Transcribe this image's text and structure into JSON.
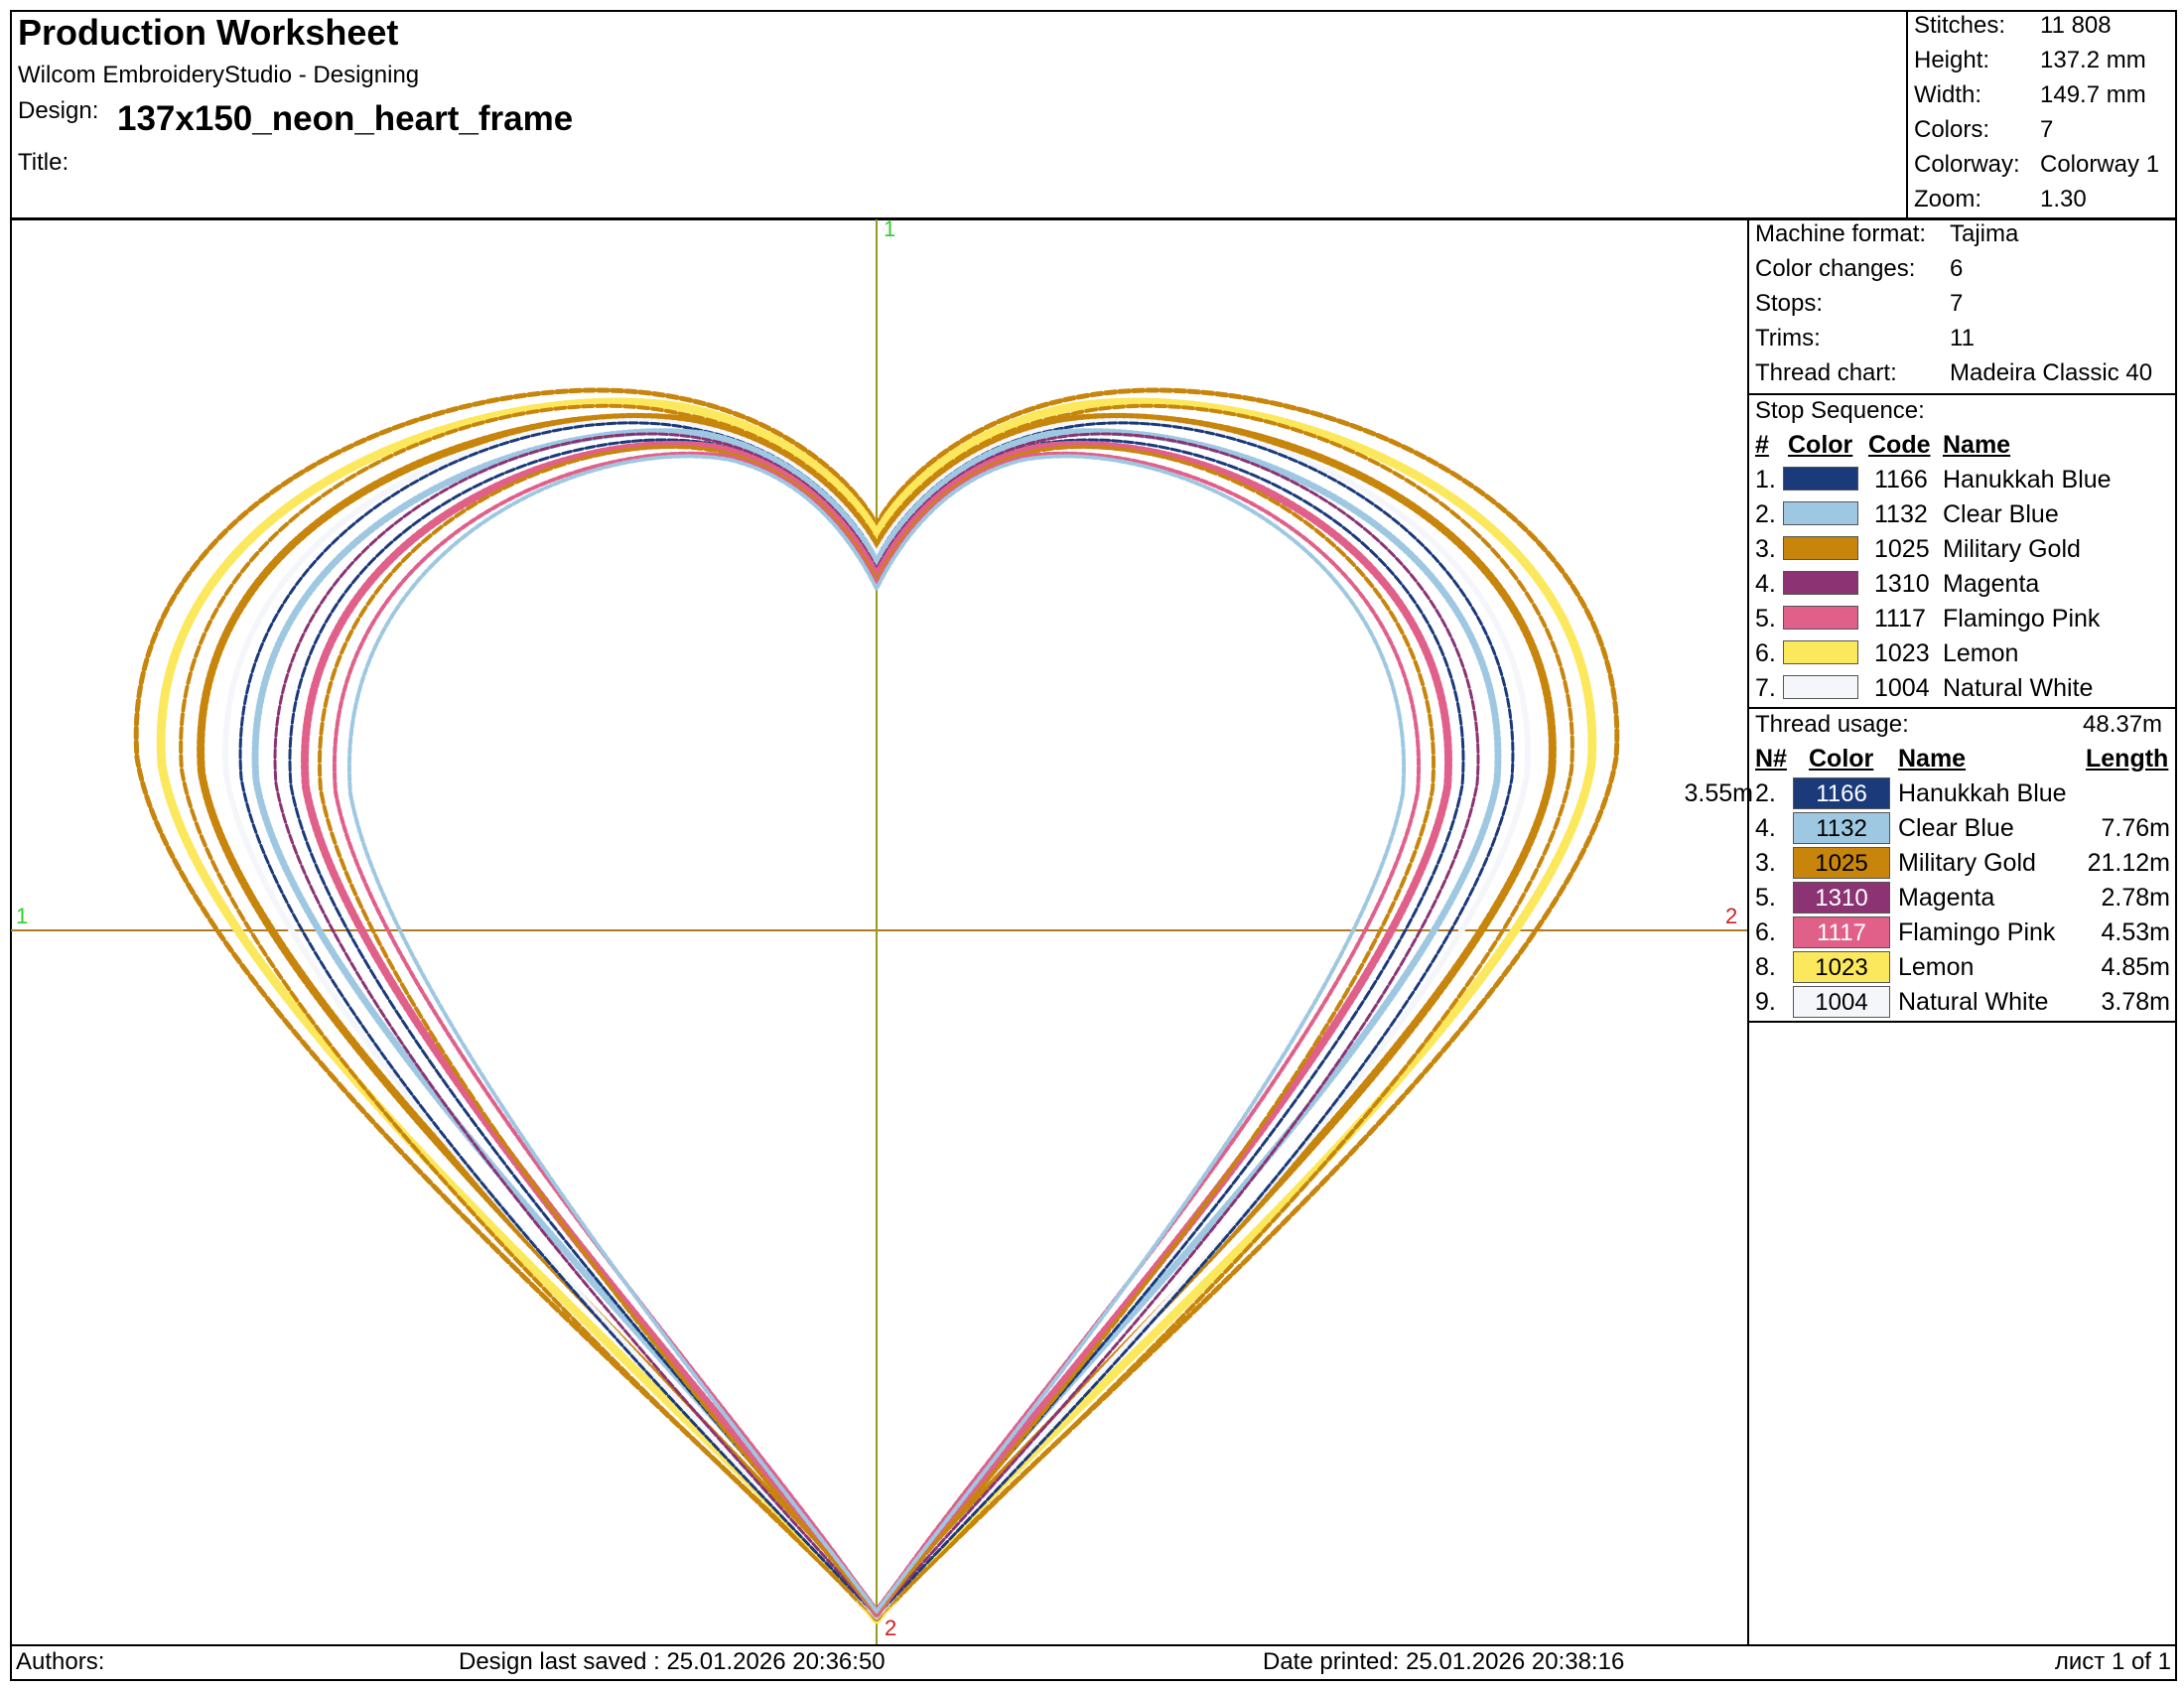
{
  "header": {
    "title": "Production Worksheet",
    "software": "Wilcom EmbroideryStudio - Designing",
    "design_label": "Design:",
    "design_name": "137x150_neon_heart_frame",
    "title_label": "Title:",
    "title_value": ""
  },
  "stats": [
    {
      "label": "Stitches:",
      "value": "11 808"
    },
    {
      "label": "Height:",
      "value": "137.2 mm"
    },
    {
      "label": "Width:",
      "value": "149.7 mm"
    },
    {
      "label": "Colors:",
      "value": "7"
    },
    {
      "label": "Colorway:",
      "value": "Colorway 1"
    },
    {
      "label": "Zoom:",
      "value": "1.30"
    }
  ],
  "machine": [
    {
      "label": "Machine format:",
      "value": "Tajima"
    },
    {
      "label": "Color changes:",
      "value": "6"
    },
    {
      "label": "Stops:",
      "value": "7"
    },
    {
      "label": "Trims:",
      "value": "11"
    },
    {
      "label": "Thread chart:",
      "value": "Madeira Classic 40"
    }
  ],
  "stop_sequence": {
    "title": "Stop Sequence:",
    "headers": {
      "num": "#",
      "color": "Color",
      "code": "Code",
      "name": "Name"
    },
    "rows": [
      {
        "num": "1.",
        "color": "#1b3a7a",
        "code": "1166",
        "name": "Hanukkah Blue"
      },
      {
        "num": "2.",
        "color": "#9ec8e2",
        "code": "1132",
        "name": "Clear Blue"
      },
      {
        "num": "3.",
        "color": "#c8850c",
        "code": "1025",
        "name": "Military Gold"
      },
      {
        "num": "4.",
        "color": "#8b3373",
        "code": "1310",
        "name": "Magenta"
      },
      {
        "num": "5.",
        "color": "#e0608a",
        "code": "1117",
        "name": "Flamingo Pink"
      },
      {
        "num": "6.",
        "color": "#fce85c",
        "code": "1023",
        "name": "Lemon"
      },
      {
        "num": "7.",
        "color": "#f4f6fa",
        "code": "1004",
        "name": "Natural White"
      }
    ]
  },
  "thread_usage": {
    "title": "Thread usage:",
    "total": "48.37m",
    "headers": {
      "num": "N#",
      "color": "Color",
      "name": "Name",
      "length": "Length"
    },
    "rows": [
      {
        "num": "2.",
        "color": "#1b3a7a",
        "text_color": "#ffffff",
        "code": "1166",
        "name": "Hanukkah Blue",
        "length": "3.55m"
      },
      {
        "num": "4.",
        "color": "#9ec8e2",
        "text_color": "#000000",
        "code": "1132",
        "name": "Clear Blue",
        "length": "7.76m"
      },
      {
        "num": "3.",
        "color": "#c8850c",
        "text_color": "#000000",
        "code": "1025",
        "name": "Military Gold",
        "length": "21.12m"
      },
      {
        "num": "5.",
        "color": "#8b3373",
        "text_color": "#ffffff",
        "code": "1310",
        "name": "Magenta",
        "length": "2.78m"
      },
      {
        "num": "6.",
        "color": "#e0608a",
        "text_color": "#ffffff",
        "code": "1117",
        "name": "Flamingo Pink",
        "length": "4.53m"
      },
      {
        "num": "8.",
        "color": "#fce85c",
        "text_color": "#000000",
        "code": "1023",
        "name": "Lemon",
        "length": "4.85m"
      },
      {
        "num": "9.",
        "color": "#f4f6fa",
        "text_color": "#000000",
        "code": "1004",
        "name": "Natural White",
        "length": "3.78m"
      }
    ]
  },
  "axis_labels": {
    "top": "1",
    "left": "1",
    "right": "2",
    "bottom": "2"
  },
  "footer": {
    "authors": "Authors:",
    "saved": "Design last saved : 25.01.2026 20:36:50",
    "printed": "Date printed: 25.01.2026 20:38:16",
    "page": "лист 1 of 1"
  },
  "colors": {
    "axis_h": "#b07a20",
    "axis_v": "#9a9a20",
    "label_green": "#2bd02b",
    "label_red": "#d02020"
  }
}
